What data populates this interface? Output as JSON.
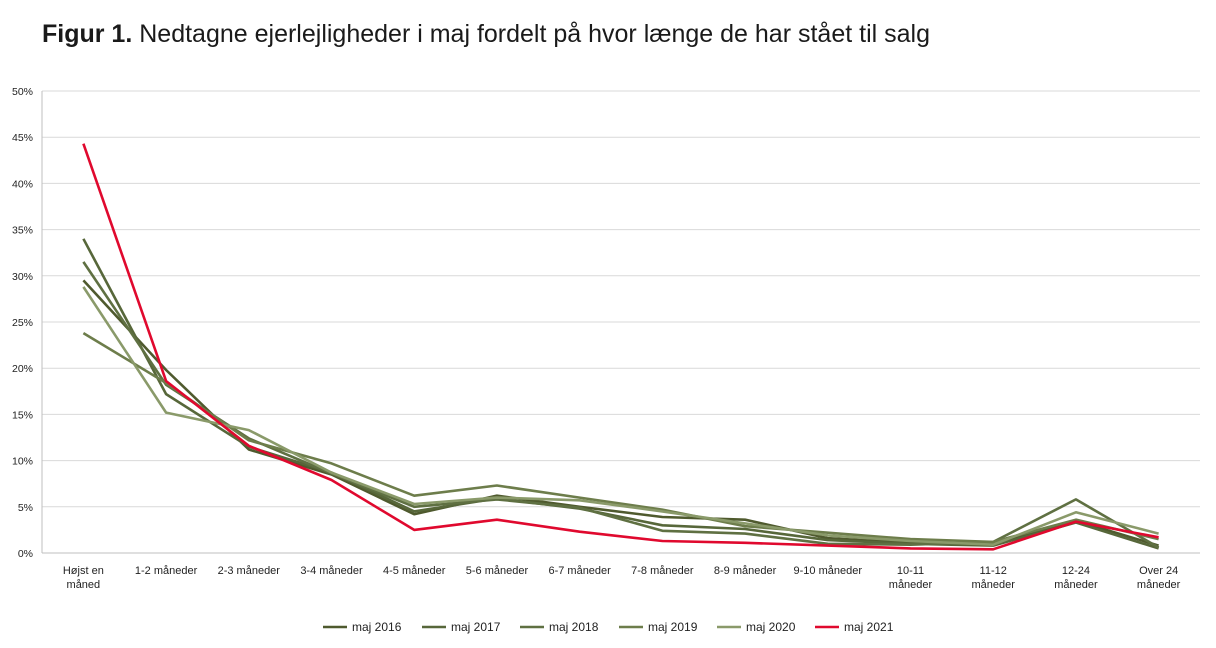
{
  "title": {
    "prefix": "Figur 1.",
    "text": "Nedtagne ejerlejligheder i maj fordelt på hvor længe de har stået til salg"
  },
  "chart_data": {
    "type": "line",
    "categories": [
      [
        "Højst en",
        "måned"
      ],
      [
        "1-2 måneder"
      ],
      [
        "2-3 måneder"
      ],
      [
        "3-4 måneder"
      ],
      [
        "4-5 måneder"
      ],
      [
        "5-6 måneder"
      ],
      [
        "6-7 måneder"
      ],
      [
        "7-8 måneder"
      ],
      [
        "8-9 måneder"
      ],
      [
        "9-10 måneder"
      ],
      [
        "10-11",
        "måneder"
      ],
      [
        "11-12",
        "måneder"
      ],
      [
        "12-24",
        "måneder"
      ],
      [
        "Over 24",
        "måneder"
      ]
    ],
    "yticks": [
      "0%",
      "5%",
      "10%",
      "15%",
      "20%",
      "25%",
      "30%",
      "35%",
      "40%",
      "45%",
      "50%"
    ],
    "ylim": [
      0,
      50
    ],
    "grid": true,
    "legend_position": "bottom",
    "series": [
      {
        "name": "maj 2016",
        "color": "#4f5a2e",
        "values": [
          29.5,
          19.8,
          11.2,
          8.5,
          4.2,
          6.2,
          5.0,
          3.9,
          3.6,
          1.6,
          1.1,
          1.0,
          3.5,
          0.8
        ]
      },
      {
        "name": "maj 2017",
        "color": "#57673a",
        "values": [
          34.0,
          17.2,
          11.5,
          8.7,
          4.5,
          5.9,
          4.8,
          3.0,
          2.6,
          1.4,
          1.0,
          0.8,
          3.3,
          0.5
        ]
      },
      {
        "name": "maj 2018",
        "color": "#5f7042",
        "values": [
          31.5,
          18.2,
          12.4,
          8.6,
          5.0,
          5.8,
          4.9,
          2.4,
          2.1,
          1.0,
          0.9,
          1.2,
          5.8,
          0.6
        ]
      },
      {
        "name": "maj 2019",
        "color": "#6d7d4b",
        "values": [
          23.8,
          18.4,
          12.2,
          9.7,
          6.2,
          7.3,
          6.0,
          4.7,
          2.9,
          2.2,
          1.5,
          1.2,
          3.6,
          1.5
        ]
      },
      {
        "name": "maj 2020",
        "color": "#8a9a6a",
        "values": [
          28.8,
          15.2,
          13.3,
          8.7,
          5.3,
          6.0,
          5.7,
          4.5,
          3.2,
          1.9,
          1.3,
          0.9,
          4.4,
          2.1
        ]
      },
      {
        "name": "maj 2021",
        "color": "#e0092e",
        "values": [
          44.3,
          18.6,
          11.6,
          7.9,
          2.5,
          3.6,
          2.3,
          1.3,
          1.1,
          0.8,
          0.5,
          0.4,
          3.4,
          1.7
        ]
      }
    ]
  }
}
